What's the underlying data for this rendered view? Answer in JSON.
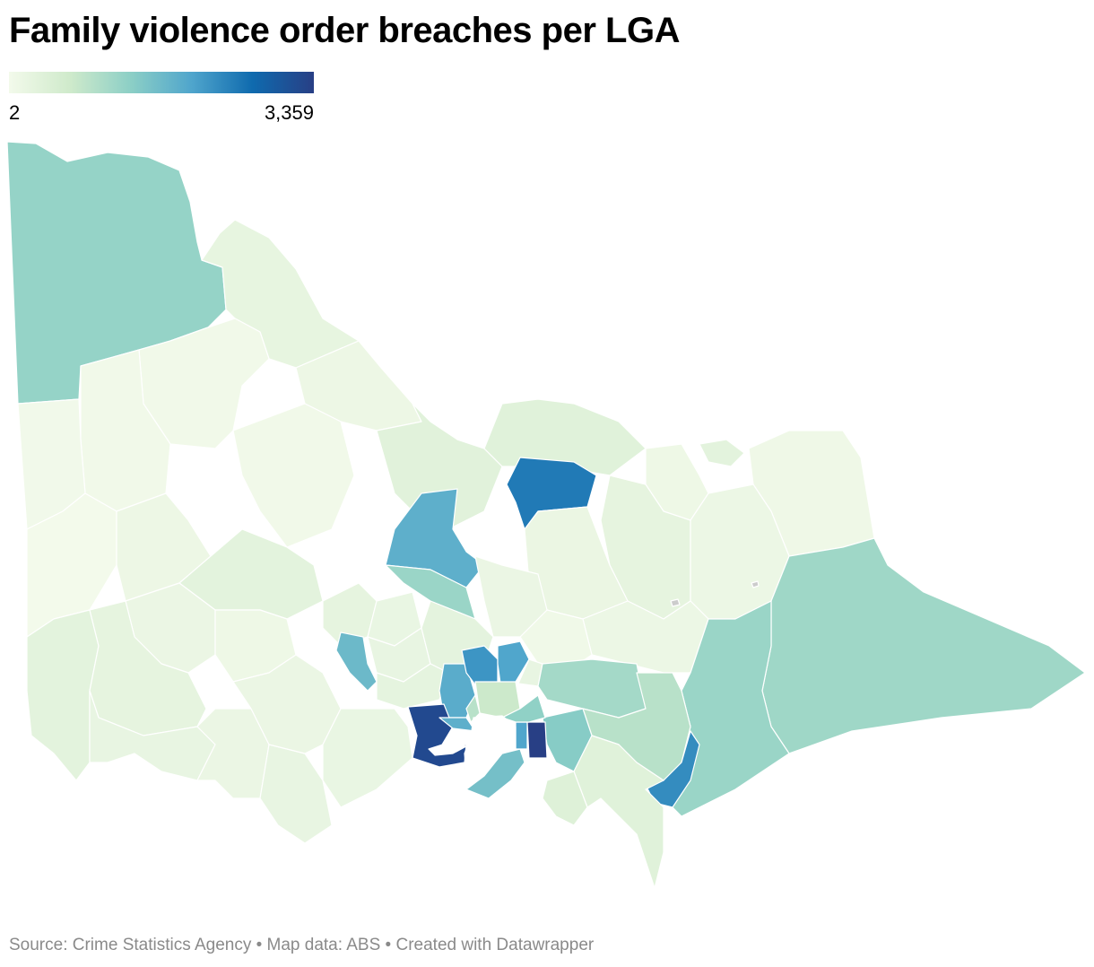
{
  "title": "Family violence order breaches per LGA",
  "legend": {
    "min_label": "2",
    "max_label": "3,359",
    "min_value": 2,
    "max_value": 3359,
    "colors": [
      "#f3faeb",
      "#cfeacb",
      "#8ccfc6",
      "#4fa5cc",
      "#0f6aae",
      "#283f85"
    ]
  },
  "map": {
    "no_data_color": "#cccccc",
    "regions": [
      {
        "id": "mildura",
        "value": 1250
      },
      {
        "id": "swan-hill",
        "value": 230
      },
      {
        "id": "gannawarra",
        "value": 120
      },
      {
        "id": "buloke",
        "value": 40
      },
      {
        "id": "yarriambiack",
        "value": 35
      },
      {
        "id": "hindmarsh",
        "value": 30
      },
      {
        "id": "west-wimmera",
        "value": 8
      },
      {
        "id": "horsham",
        "value": 120
      },
      {
        "id": "loddon",
        "value": 40
      },
      {
        "id": "campaspe",
        "value": 330
      },
      {
        "id": "moira",
        "value": 350
      },
      {
        "id": "greater-shepparton",
        "value": 2500
      },
      {
        "id": "greater-bendigo",
        "value": 1850
      },
      {
        "id": "wodonga",
        "value": 300
      },
      {
        "id": "towong",
        "value": 80
      },
      {
        "id": "indigo",
        "value": 100
      },
      {
        "id": "wangaratta",
        "value": 250
      },
      {
        "id": "alpine",
        "value": 130
      },
      {
        "id": "northern-grampians",
        "value": 300
      },
      {
        "id": "ararat",
        "value": 150
      },
      {
        "id": "pyrenees",
        "value": 100
      },
      {
        "id": "central-goldfields",
        "value": 250
      },
      {
        "id": "mount-alexander",
        "value": 180
      },
      {
        "id": "strathbogie",
        "value": 160
      },
      {
        "id": "mitchell",
        "value": 1200
      },
      {
        "id": "benalla",
        "value": 130
      },
      {
        "id": "mansfield",
        "value": 60
      },
      {
        "id": "murrindindi",
        "value": 150
      },
      {
        "id": "east-gippsland",
        "value": 1150
      },
      {
        "id": "wellington",
        "value": 1200
      },
      {
        "id": "glenelg",
        "value": 300
      },
      {
        "id": "southern-grampians",
        "value": 250
      },
      {
        "id": "moyne",
        "value": 200
      },
      {
        "id": "corangamite",
        "value": 150
      },
      {
        "id": "colac-otway",
        "value": 200
      },
      {
        "id": "golden-plains",
        "value": 150
      },
      {
        "id": "hepburn",
        "value": 200
      },
      {
        "id": "macedon-ranges",
        "value": 280
      },
      {
        "id": "ballarat",
        "value": 1700
      },
      {
        "id": "moorabool",
        "value": 260
      },
      {
        "id": "melton",
        "value": 1900
      },
      {
        "id": "hume",
        "value": 2200
      },
      {
        "id": "whittlesea",
        "value": 2000
      },
      {
        "id": "nillumbik",
        "value": 200
      },
      {
        "id": "yarra-ranges",
        "value": 1100
      },
      {
        "id": "baw-baw",
        "value": 900
      },
      {
        "id": "cardinia",
        "value": 1400
      },
      {
        "id": "latrobe",
        "value": 2300
      },
      {
        "id": "south-gippsland",
        "value": 350
      },
      {
        "id": "bass-coast",
        "value": 400
      },
      {
        "id": "mornington-peninsula",
        "value": 1600
      },
      {
        "id": "frankston",
        "value": 2000
      },
      {
        "id": "casey",
        "value": 3359
      },
      {
        "id": "greater-geelong",
        "value": 3200
      },
      {
        "id": "surf-coast",
        "value": 180
      },
      {
        "id": "queenscliffe",
        "value": 2
      },
      {
        "id": "wyndham",
        "value": 1850
      },
      {
        "id": "metro-inner",
        "value": 700
      },
      {
        "id": "metro-south",
        "value": 1300
      },
      {
        "id": "metro-north",
        "value": 900
      }
    ]
  },
  "footer": {
    "text": "Source: Crime Statistics Agency • Map data: ABS • Created with Datawrapper"
  }
}
